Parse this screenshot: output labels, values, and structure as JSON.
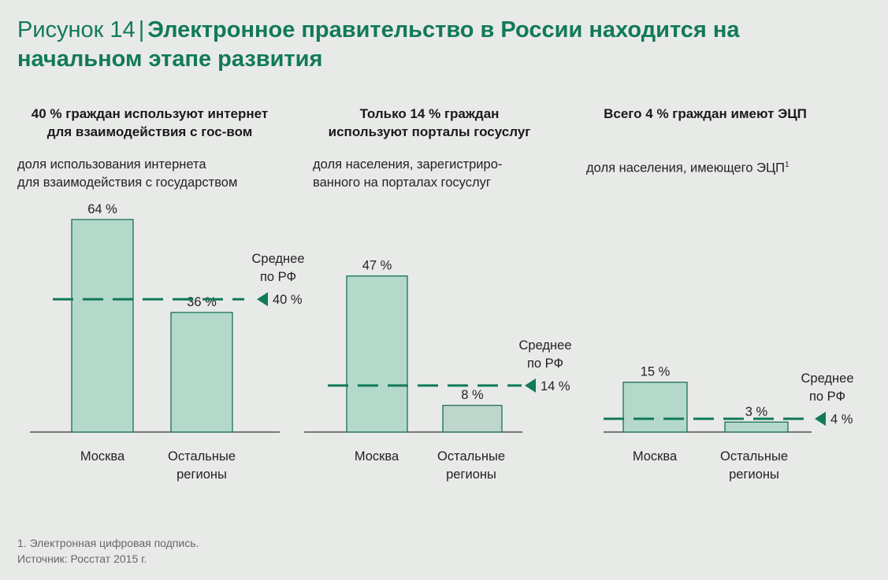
{
  "title": {
    "prefix": "Рисунок 14",
    "separator": "|",
    "text": "Электронное правительство в России находится на начальном этапе развития"
  },
  "colors": {
    "title": "#117a57",
    "bar_fill": "#b4d9cb",
    "bar_stroke": "#1a6e5c",
    "bar_fill_light": "#bfd6cc",
    "average_line": "#117a57",
    "axis": "#333333"
  },
  "panels": [
    {
      "heading_line1": "40 % граждан используют интернет",
      "heading_line2": "для взаимодействия с гос-вом",
      "subtitle_line1": "доля использования интернета",
      "subtitle_line2": "для взаимодействия с государством",
      "average_label_line1": "Среднее",
      "average_label_line2": "по РФ",
      "average_value_label": "40 %"
    },
    {
      "heading_line1": "Только 14 % граждан",
      "heading_line2": "используют порталы госуслуг",
      "subtitle_line1": "доля населения, зарегистриро-",
      "subtitle_line2": "ванного на  порталах госуслуг",
      "average_label_line1": "Среднее",
      "average_label_line2": "по РФ",
      "average_value_label": "14 %"
    },
    {
      "heading_line1": "Всего 4 % граждан имеют ЭЦП",
      "heading_line2": "",
      "subtitle_line1": "доля населения, имеющего ЭЦП",
      "subtitle_sup": "1",
      "subtitle_line2": "",
      "average_label_line1": "Среднее",
      "average_label_line2": "по РФ",
      "average_value_label": "4 %"
    }
  ],
  "chart_data": [
    {
      "type": "bar",
      "categories": [
        "Москва",
        "Остальные\nрегионы"
      ],
      "values": [
        64,
        36
      ],
      "value_labels": [
        "64 %",
        "36 %"
      ],
      "average": 40,
      "ylim": [
        0,
        64
      ]
    },
    {
      "type": "bar",
      "categories": [
        "Москва",
        "Остальные\nрегионы"
      ],
      "values": [
        47,
        8
      ],
      "value_labels": [
        "47 %",
        "8 %"
      ],
      "average": 14,
      "ylim": [
        0,
        64
      ]
    },
    {
      "type": "bar",
      "categories": [
        "Москва",
        "Остальные\nрегионы"
      ],
      "values": [
        15,
        3
      ],
      "value_labels": [
        "15 %",
        "3 %"
      ],
      "average": 4,
      "ylim": [
        0,
        64
      ]
    }
  ],
  "footnote": {
    "line1": "1. Электронная цифровая подпись.",
    "line2": "Источник: Росстат 2015 г."
  }
}
